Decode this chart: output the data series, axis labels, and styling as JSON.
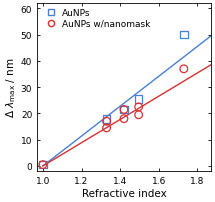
{
  "title": "",
  "xlabel": "Refractive index",
  "ylabel": "Δ λ_max / nm",
  "xlim": [
    0.97,
    1.87
  ],
  "ylim": [
    -2,
    62
  ],
  "xticks": [
    1.0,
    1.2,
    1.4,
    1.6,
    1.8
  ],
  "yticks": [
    0,
    10,
    20,
    30,
    40,
    50,
    60
  ],
  "aunps_scatter_x": [
    1.0,
    1.33,
    1.42,
    1.496,
    1.73
  ],
  "aunps_scatter_y": [
    0.5,
    18.0,
    21.5,
    25.5,
    50.0
  ],
  "aunps_color": "#4a7fd4",
  "aunps_marker": "s",
  "aunps_markersize": 5.5,
  "nanomask_scatter_x": [
    1.0,
    1.33,
    1.33,
    1.42,
    1.42,
    1.496,
    1.496,
    1.73
  ],
  "nanomask_scatter_y": [
    0.5,
    14.5,
    17.0,
    18.0,
    21.5,
    19.5,
    22.5,
    37.0
  ],
  "nanomask_color": "#d93030",
  "nanomask_marker": "o",
  "nanomask_markersize": 5.5,
  "aunps_fit_x": [
    1.0,
    1.87
  ],
  "aunps_fit_y": [
    0.0,
    49.5
  ],
  "nanomask_fit_x": [
    1.0,
    1.87
  ],
  "nanomask_fit_y": [
    0.0,
    38.5
  ],
  "legend_labels": [
    "AuNPs",
    "AuNPs w/nanomask"
  ],
  "legend_colors": [
    "#4a7fd4",
    "#d93030"
  ],
  "legend_markers": [
    "s",
    "o"
  ],
  "background_color": "#ffffff",
  "tick_fontsize": 6.5,
  "label_fontsize": 7.5,
  "legend_fontsize": 6.5
}
